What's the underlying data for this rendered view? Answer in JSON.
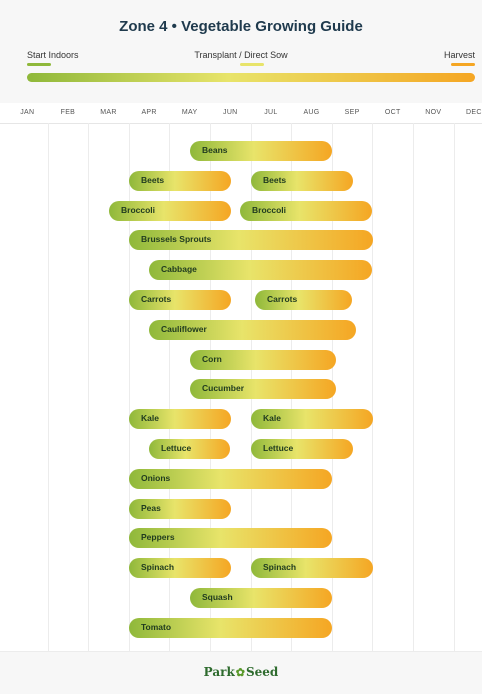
{
  "header": {
    "title": "Zone 4  •  Vegetable Growing Guide",
    "legend": [
      {
        "label": "Start Indoors",
        "color": "#8fb83a"
      },
      {
        "label": "Transplant / Direct Sow",
        "color": "#e8e46a"
      },
      {
        "label": "Harvest",
        "color": "#f5a623"
      }
    ]
  },
  "chart_data": {
    "type": "bar",
    "orientation": "horizontal-gantt",
    "xlabel": "",
    "ylabel": "",
    "months": [
      "JAN",
      "FEB",
      "MAR",
      "APR",
      "MAY",
      "JUN",
      "JUL",
      "AUG",
      "SEP",
      "OCT",
      "NOV",
      "DEC"
    ],
    "xlim": [
      0,
      12
    ],
    "grid": true,
    "units": "months from Jan 1",
    "crops": [
      {
        "name": "Beans",
        "periods": [
          [
            4.5,
            8.0
          ]
        ]
      },
      {
        "name": "Beets",
        "periods": [
          [
            3.0,
            5.5
          ],
          [
            6.0,
            8.5
          ]
        ]
      },
      {
        "name": "Broccoli",
        "periods": [
          [
            2.5,
            5.5
          ],
          [
            5.75,
            9.0
          ]
        ]
      },
      {
        "name": "Brussels Sprouts",
        "periods": [
          [
            3.0,
            9.0
          ]
        ]
      },
      {
        "name": "Cabbage",
        "periods": [
          [
            3.5,
            9.0
          ]
        ]
      },
      {
        "name": "Carrots",
        "periods": [
          [
            3.0,
            5.5
          ],
          [
            6.1,
            8.5
          ]
        ]
      },
      {
        "name": "Cauliflower",
        "periods": [
          [
            3.5,
            8.6
          ]
        ]
      },
      {
        "name": "Corn",
        "periods": [
          [
            4.5,
            8.1
          ]
        ]
      },
      {
        "name": "Cucumber",
        "periods": [
          [
            4.5,
            8.1
          ]
        ]
      },
      {
        "name": "Kale",
        "periods": [
          [
            3.0,
            5.5
          ],
          [
            6.0,
            9.0
          ]
        ]
      },
      {
        "name": "Lettuce",
        "periods": [
          [
            3.5,
            5.5
          ],
          [
            6.0,
            8.5
          ]
        ]
      },
      {
        "name": "Onions",
        "periods": [
          [
            3.0,
            8.0
          ]
        ]
      },
      {
        "name": "Peas",
        "periods": [
          [
            3.0,
            5.5
          ]
        ]
      },
      {
        "name": "Peppers",
        "periods": [
          [
            3.0,
            8.0
          ]
        ]
      },
      {
        "name": "Spinach",
        "periods": [
          [
            3.0,
            5.5
          ],
          [
            6.0,
            9.0
          ]
        ]
      },
      {
        "name": "Squash",
        "periods": [
          [
            4.5,
            8.0
          ]
        ]
      },
      {
        "name": "Tomato",
        "periods": [
          [
            3.0,
            8.0
          ]
        ]
      }
    ]
  },
  "footer": {
    "logo_left": "Park",
    "logo_mark": "✿",
    "logo_right": "Seed"
  }
}
